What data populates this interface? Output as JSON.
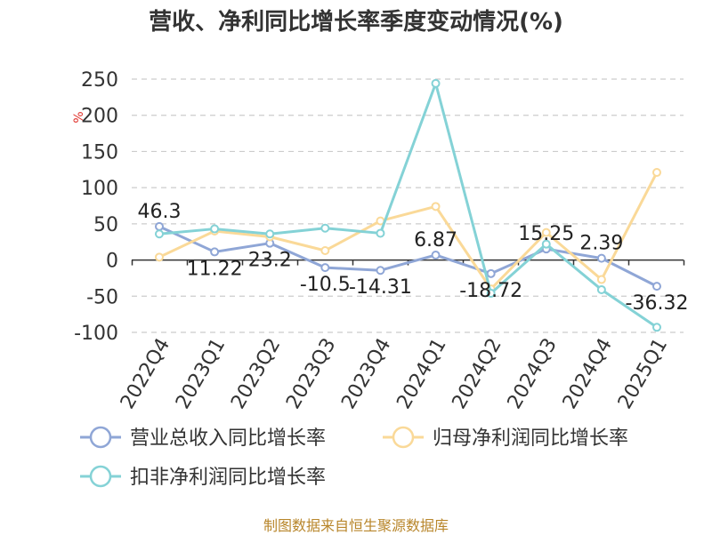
{
  "title": "营收、净利同比增长率季度变动情况(%)",
  "source_note": "制图数据来自恒生聚源数据库",
  "chart_data": {
    "type": "line",
    "title": "营收、净利同比增长率季度变动情况(%)",
    "ylabel": "%",
    "xlabel": "",
    "ylim": [
      -100,
      250
    ],
    "yticks": [
      250,
      200,
      150,
      100,
      50,
      0,
      -50,
      -100
    ],
    "grid": true,
    "legend_position": "bottom",
    "categories": [
      "2022Q4",
      "2023Q1",
      "2023Q2",
      "2023Q3",
      "2023Q4",
      "2024Q1",
      "2024Q2",
      "2024Q3",
      "2024Q4",
      "2025Q1"
    ],
    "series": [
      {
        "name": "营业总收入同比增长率",
        "color": "#8fa6d6",
        "values": [
          46.3,
          11.22,
          23.2,
          -10.5,
          -14.31,
          6.87,
          -18.72,
          15.25,
          2.39,
          -36.32
        ],
        "labels": [
          "46.3",
          "11.22",
          "23.2",
          "-10.5",
          "-14.31",
          "6.87",
          "-18.72",
          "15.25",
          "2.39",
          "-36.32"
        ]
      },
      {
        "name": "归母净利润同比增长率",
        "color": "#fad998",
        "values": [
          4,
          40,
          32,
          13,
          54,
          74,
          -40,
          38,
          -27,
          121
        ]
      },
      {
        "name": "扣非净利润同比增长率",
        "color": "#84d2d6",
        "values": [
          36,
          43,
          36,
          44,
          37,
          244,
          -46,
          22,
          -41,
          -93
        ]
      }
    ]
  }
}
